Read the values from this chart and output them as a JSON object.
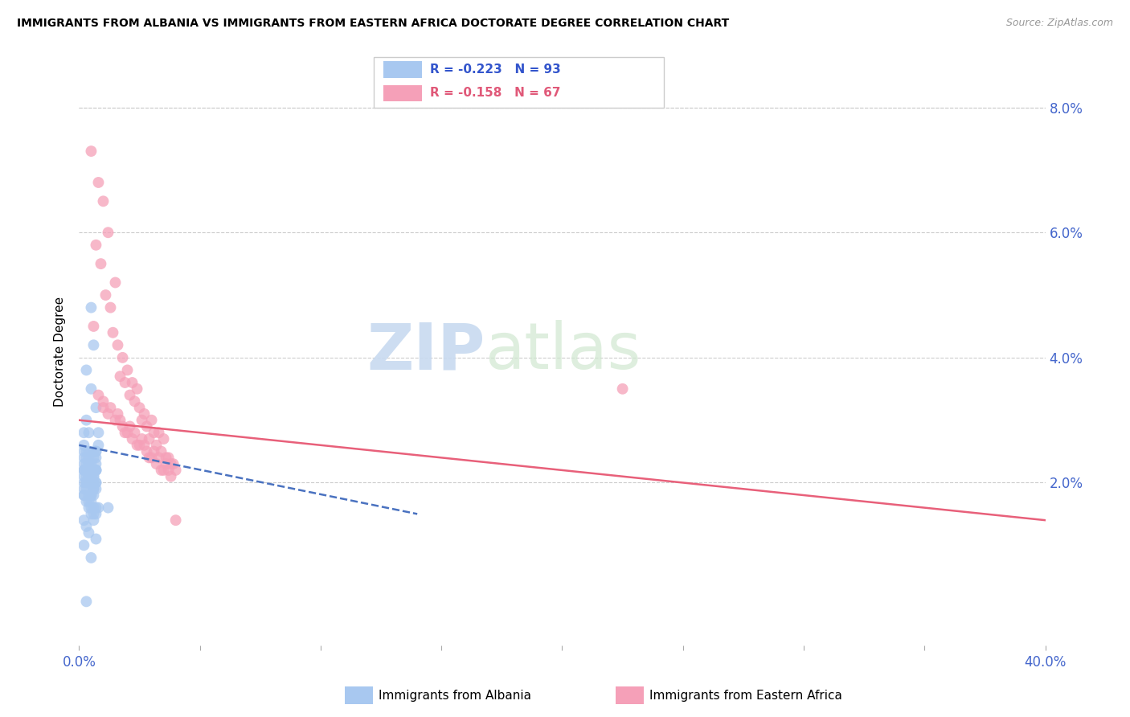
{
  "title": "IMMIGRANTS FROM ALBANIA VS IMMIGRANTS FROM EASTERN AFRICA DOCTORATE DEGREE CORRELATION CHART",
  "source": "Source: ZipAtlas.com",
  "ylabel": "Doctorate Degree",
  "xmin": 0.0,
  "xmax": 0.4,
  "ymin": -0.006,
  "ymax": 0.088,
  "blue_color": "#a8c8f0",
  "pink_color": "#f5a0b8",
  "blue_line_color": "#4a72c0",
  "pink_line_color": "#e8607a",
  "albania_legend": "Immigrants from Albania",
  "eastern_legend": "Immigrants from Eastern Africa",
  "watermark_zip": "ZIP",
  "watermark_atlas": "atlas",
  "albania_scatter_x": [
    0.005,
    0.003,
    0.006,
    0.004,
    0.007,
    0.002,
    0.008,
    0.003,
    0.005,
    0.007,
    0.004,
    0.006,
    0.002,
    0.005,
    0.008,
    0.003,
    0.006,
    0.004,
    0.007,
    0.002,
    0.005,
    0.003,
    0.006,
    0.004,
    0.007,
    0.002,
    0.005,
    0.003,
    0.006,
    0.004,
    0.007,
    0.002,
    0.005,
    0.003,
    0.006,
    0.004,
    0.007,
    0.002,
    0.005,
    0.003,
    0.006,
    0.004,
    0.007,
    0.002,
    0.005,
    0.003,
    0.006,
    0.004,
    0.007,
    0.002,
    0.005,
    0.003,
    0.006,
    0.004,
    0.007,
    0.002,
    0.005,
    0.003,
    0.006,
    0.004,
    0.007,
    0.002,
    0.005,
    0.003,
    0.006,
    0.004,
    0.007,
    0.002,
    0.005,
    0.008,
    0.003,
    0.006,
    0.004,
    0.007,
    0.002,
    0.005,
    0.003,
    0.006,
    0.004,
    0.007,
    0.002,
    0.005,
    0.003,
    0.006,
    0.004,
    0.007,
    0.002,
    0.005,
    0.003,
    0.006,
    0.012
  ],
  "albania_scatter_y": [
    0.048,
    0.038,
    0.042,
    0.025,
    0.032,
    0.022,
    0.028,
    0.03,
    0.035,
    0.025,
    0.028,
    0.022,
    0.024,
    0.02,
    0.026,
    0.022,
    0.025,
    0.02,
    0.023,
    0.028,
    0.018,
    0.025,
    0.022,
    0.02,
    0.024,
    0.026,
    0.023,
    0.021,
    0.024,
    0.022,
    0.025,
    0.023,
    0.02,
    0.024,
    0.021,
    0.023,
    0.022,
    0.025,
    0.02,
    0.022,
    0.02,
    0.024,
    0.022,
    0.021,
    0.02,
    0.022,
    0.021,
    0.023,
    0.02,
    0.022,
    0.021,
    0.023,
    0.02,
    0.021,
    0.022,
    0.02,
    0.021,
    0.02,
    0.019,
    0.021,
    0.02,
    0.019,
    0.018,
    0.02,
    0.019,
    0.018,
    0.019,
    0.018,
    0.017,
    0.016,
    0.019,
    0.018,
    0.017,
    0.016,
    0.018,
    0.016,
    0.017,
    0.015,
    0.016,
    0.015,
    0.014,
    0.015,
    0.013,
    0.014,
    0.012,
    0.011,
    0.01,
    0.008,
    0.001,
    0.016,
    0.016
  ],
  "eastern_scatter_x": [
    0.005,
    0.008,
    0.01,
    0.012,
    0.007,
    0.009,
    0.015,
    0.011,
    0.013,
    0.006,
    0.014,
    0.016,
    0.018,
    0.02,
    0.022,
    0.024,
    0.017,
    0.019,
    0.021,
    0.023,
    0.025,
    0.027,
    0.03,
    0.033,
    0.035,
    0.028,
    0.031,
    0.026,
    0.029,
    0.032,
    0.034,
    0.036,
    0.038,
    0.04,
    0.037,
    0.039,
    0.01,
    0.015,
    0.02,
    0.025,
    0.03,
    0.035,
    0.04,
    0.012,
    0.018,
    0.022,
    0.028,
    0.032,
    0.038,
    0.008,
    0.013,
    0.017,
    0.023,
    0.027,
    0.033,
    0.037,
    0.01,
    0.016,
    0.021,
    0.026,
    0.031,
    0.036,
    0.019,
    0.024,
    0.029,
    0.034,
    0.225
  ],
  "eastern_scatter_y": [
    0.073,
    0.068,
    0.065,
    0.06,
    0.058,
    0.055,
    0.052,
    0.05,
    0.048,
    0.045,
    0.044,
    0.042,
    0.04,
    0.038,
    0.036,
    0.035,
    0.037,
    0.036,
    0.034,
    0.033,
    0.032,
    0.031,
    0.03,
    0.028,
    0.027,
    0.029,
    0.028,
    0.03,
    0.027,
    0.026,
    0.025,
    0.024,
    0.023,
    0.022,
    0.024,
    0.023,
    0.032,
    0.03,
    0.028,
    0.026,
    0.024,
    0.022,
    0.014,
    0.031,
    0.029,
    0.027,
    0.025,
    0.023,
    0.021,
    0.034,
    0.032,
    0.03,
    0.028,
    0.026,
    0.024,
    0.022,
    0.033,
    0.031,
    0.029,
    0.027,
    0.025,
    0.023,
    0.028,
    0.026,
    0.024,
    0.022,
    0.035
  ],
  "albania_trend_x": [
    0.0,
    0.14
  ],
  "albania_trend_y": [
    0.026,
    0.015
  ],
  "eastern_trend_x": [
    0.0,
    0.4
  ],
  "eastern_trend_y": [
    0.03,
    0.014
  ]
}
